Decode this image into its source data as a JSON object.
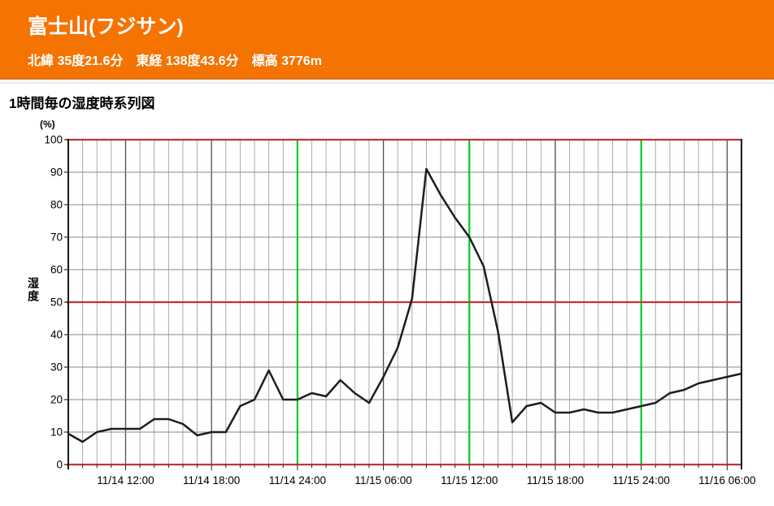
{
  "header": {
    "title": "富士山(フジサン)",
    "coordinates": "北緯 35度21.6分　東経 138度43.6分　標高 3776m"
  },
  "section": {
    "title": "1時間毎の湿度時系列図"
  },
  "chart_data": {
    "type": "line",
    "title": "1時間毎の湿度時系列図",
    "ylabel": "湿度",
    "y_unit": "(%)",
    "ylim": [
      0,
      100
    ],
    "y_ticks": [
      0,
      10,
      20,
      30,
      40,
      50,
      60,
      70,
      80,
      90,
      100
    ],
    "grid": "on",
    "x": [
      "11/14 08:00",
      "11/14 09:00",
      "11/14 10:00",
      "11/14 11:00",
      "11/14 12:00",
      "11/14 13:00",
      "11/14 14:00",
      "11/14 15:00",
      "11/14 16:00",
      "11/14 17:00",
      "11/14 18:00",
      "11/14 19:00",
      "11/14 20:00",
      "11/14 21:00",
      "11/14 22:00",
      "11/14 23:00",
      "11/14 24:00",
      "11/15 01:00",
      "11/15 02:00",
      "11/15 03:00",
      "11/15 04:00",
      "11/15 05:00",
      "11/15 06:00",
      "11/15 07:00",
      "11/15 08:00",
      "11/15 09:00",
      "11/15 10:00",
      "11/15 11:00",
      "11/15 12:00",
      "11/15 13:00",
      "11/15 14:00",
      "11/15 15:00",
      "11/15 16:00",
      "11/15 17:00",
      "11/15 18:00",
      "11/15 19:00",
      "11/15 20:00",
      "11/15 21:00",
      "11/15 22:00",
      "11/15 23:00",
      "11/15 24:00",
      "11/16 01:00",
      "11/16 02:00",
      "11/16 03:00",
      "11/16 04:00",
      "11/16 05:00",
      "11/16 06:00",
      "11/16 07:00"
    ],
    "values": [
      9.5,
      7,
      10,
      11,
      11,
      11,
      14,
      14,
      12.5,
      9,
      10,
      10,
      18,
      20,
      29,
      20,
      20,
      22,
      21,
      26,
      22,
      19,
      27,
      36,
      51,
      91,
      83,
      76,
      70,
      61,
      41,
      13,
      18,
      19,
      16,
      16,
      17,
      16,
      16,
      17,
      18,
      19,
      22,
      23,
      25,
      26,
      27,
      28
    ],
    "x_major_labels": [
      "11/14 12:00",
      "11/14 18:00",
      "11/14 24:00",
      "11/15 06:00",
      "11/15 12:00",
      "11/15 18:00",
      "11/15 24:00",
      "11/16 06:00"
    ],
    "green_lines": [
      "11/14 24:00",
      "11/15 12:00",
      "11/15 24:00"
    ],
    "red_line_values": [
      0,
      50,
      100
    ],
    "legend": "none",
    "colors": {
      "line": "#1c1c28",
      "red_line": "#c53434",
      "green_line": "#00cc22",
      "grid_major_v": "#4f4f4f",
      "grid_minor_v": "#a2a2a2",
      "grid_h": "#8a8a8a",
      "axis": "#1a1a1a",
      "header_bg": "#f57301",
      "header_text": "#ffffff"
    }
  }
}
